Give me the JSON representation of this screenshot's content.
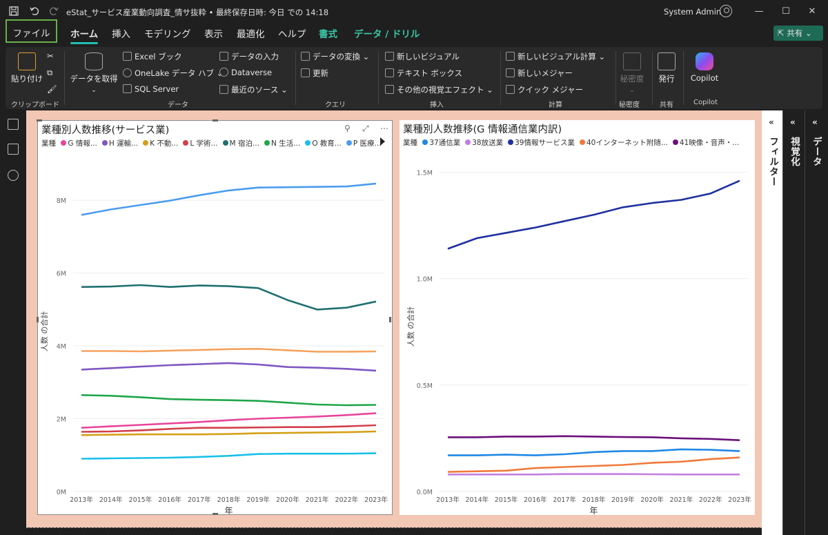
{
  "titlebar": {
    "title": "eStat_サービス産業動向調査_情サ抜粋 • 最終保存日時: 今日 での 14:18",
    "user": "System Admin",
    "icons": [
      "save-icon",
      "undo-icon",
      "redo-icon",
      "user-icon"
    ]
  },
  "menu": {
    "tabs": [
      "ファイル",
      "ホーム",
      "挿入",
      "モデリング",
      "表示",
      "最適化",
      "ヘルプ",
      "書式",
      "データ / ドリル"
    ],
    "active": "ホーム",
    "share": "共有"
  },
  "ribbon": {
    "clipboard": {
      "paste": "貼り付け",
      "label": "クリップボード"
    },
    "data": {
      "get_data": "データを取得",
      "excel": "Excel ブック",
      "onelake": "OneLake データ ハブ",
      "sql": "SQL Server",
      "enter_data": "データの入力",
      "dataverse": "Dataverse",
      "recent": "最近のソース",
      "label": "データ"
    },
    "queries": {
      "transform": "データの変換",
      "refresh": "更新",
      "label": "クエリ"
    },
    "insert": {
      "new_visual": "新しいビジュアル",
      "textbox": "テキスト ボックス",
      "more_visuals": "その他の視覚エフェクト",
      "label": "挿入"
    },
    "calc": {
      "new_visual_calc": "新しいビジュアル計算",
      "new_measure": "新しいメジャー",
      "quick_measure": "クイック メジャー",
      "label": "計算"
    },
    "sensitivity": {
      "button": "秘密度",
      "label": "秘密度"
    },
    "share": {
      "publish": "発行",
      "label": "共有"
    },
    "copilot": {
      "button": "Copilot",
      "label": "Copilot"
    }
  },
  "panes": {
    "filters": "フィルター",
    "visualizations": "視覚化",
    "data": "データ"
  },
  "visual_left": {
    "title": "業種別人数推移(サービス業)",
    "legend_title": "業種",
    "legend": [
      {
        "label": "G 情報...",
        "color": "#e8459a"
      },
      {
        "label": "H 運輸...",
        "color": "#7e57c2"
      },
      {
        "label": "K 不動...",
        "color": "#d4a017"
      },
      {
        "label": "L 学術...",
        "color": "#d23f4b"
      },
      {
        "label": "M 宿泊...",
        "color": "#1f6f6f"
      },
      {
        "label": "N 生活...",
        "color": "#1fa64a"
      },
      {
        "label": "O 教育...",
        "color": "#19c0e8"
      },
      {
        "label": "P 医療...",
        "color": "#4b9cf0"
      }
    ]
  },
  "visual_right": {
    "title": "業種別人数推移(G 情報通信業内訳)",
    "legend_title": "業種",
    "legend": [
      {
        "label": "37通信業",
        "color": "#1e88e5"
      },
      {
        "label": "38放送業",
        "color": "#c27ee0"
      },
      {
        "label": "39情報サービス業",
        "color": "#1f2f9f"
      },
      {
        "label": "40インターネット附随...",
        "color": "#f07a3a"
      },
      {
        "label": "41映像・音声・...",
        "color": "#6a0f7a"
      }
    ]
  },
  "chart_data": [
    {
      "type": "line",
      "title": "業種別人数推移(サービス業)",
      "xlabel": "年",
      "ylabel": "人数 の合計",
      "ylim": [
        0,
        8800000
      ],
      "yticks": [
        0,
        2000000,
        4000000,
        6000000,
        8000000
      ],
      "ytick_labels": [
        "0M",
        "2M",
        "4M",
        "6M",
        "8M"
      ],
      "x": [
        "2013年",
        "2014年",
        "2015年",
        "2016年",
        "2017年",
        "2018年",
        "2019年",
        "2020年",
        "2021年",
        "2022年",
        "2023年"
      ],
      "series": [
        {
          "name": "P 医療...",
          "color": "#4b9cf0",
          "values": [
            7600000,
            7750000,
            7870000,
            7990000,
            8140000,
            8270000,
            8350000,
            8360000,
            8370000,
            8380000,
            8460000
          ]
        },
        {
          "name": "M 宿泊...",
          "color": "#1f6f6f",
          "values": [
            5620000,
            5630000,
            5670000,
            5620000,
            5660000,
            5640000,
            5590000,
            5260000,
            5000000,
            5050000,
            5220000
          ]
        },
        {
          "name": "K 不動...",
          "color": "#f5a25d",
          "values": [
            3860000,
            3860000,
            3850000,
            3870000,
            3890000,
            3910000,
            3920000,
            3880000,
            3840000,
            3840000,
            3850000
          ]
        },
        {
          "name": "H 運輸...",
          "color": "#7e57c2",
          "values": [
            3350000,
            3390000,
            3430000,
            3470000,
            3500000,
            3530000,
            3490000,
            3420000,
            3400000,
            3370000,
            3320000
          ]
        },
        {
          "name": "N 生活...",
          "color": "#1fa64a",
          "values": [
            2650000,
            2630000,
            2590000,
            2540000,
            2520000,
            2510000,
            2490000,
            2440000,
            2390000,
            2370000,
            2380000
          ]
        },
        {
          "name": "G 情報...",
          "color": "#e8459a",
          "values": [
            1750000,
            1790000,
            1830000,
            1870000,
            1910000,
            1960000,
            2000000,
            2030000,
            2060000,
            2100000,
            2150000
          ]
        },
        {
          "name": "L 学術...",
          "color": "#d23f4b",
          "values": [
            1640000,
            1650000,
            1680000,
            1720000,
            1750000,
            1750000,
            1760000,
            1770000,
            1770000,
            1790000,
            1820000
          ]
        },
        {
          "name": "K 不動... (yellow)",
          "color": "#d4a017",
          "values": [
            1550000,
            1560000,
            1570000,
            1570000,
            1570000,
            1580000,
            1600000,
            1610000,
            1620000,
            1630000,
            1650000
          ]
        },
        {
          "name": "O 教育...",
          "color": "#19c0e8",
          "values": [
            900000,
            910000,
            920000,
            930000,
            950000,
            980000,
            1030000,
            1040000,
            1040000,
            1040000,
            1050000
          ]
        }
      ]
    },
    {
      "type": "line",
      "title": "業種別人数推移(G 情報通信業内訳)",
      "xlabel": "年",
      "ylabel": "人数 の合計",
      "ylim": [
        0,
        1550000
      ],
      "yticks": [
        0,
        500000,
        1000000,
        1500000
      ],
      "ytick_labels": [
        "0.0M",
        "0.5M",
        "1.0M",
        "1.5M"
      ],
      "x": [
        "2013年",
        "2014年",
        "2015年",
        "2016年",
        "2017年",
        "2018年",
        "2019年",
        "2020年",
        "2021年",
        "2022年",
        "2023年"
      ],
      "series": [
        {
          "name": "39情報サービス業",
          "color": "#1f2f9f",
          "values": [
            1140000,
            1190000,
            1215000,
            1240000,
            1270000,
            1300000,
            1335000,
            1355000,
            1370000,
            1400000,
            1460000
          ]
        },
        {
          "name": "41映像・音声・...",
          "color": "#6a0f7a",
          "values": [
            255000,
            255000,
            258000,
            258000,
            260000,
            258000,
            256000,
            255000,
            250000,
            247000,
            241000
          ]
        },
        {
          "name": "37通信業",
          "color": "#1e88e5",
          "values": [
            170000,
            170000,
            173000,
            170000,
            175000,
            185000,
            190000,
            190000,
            198000,
            196000,
            190000
          ]
        },
        {
          "name": "40インターネット附随...",
          "color": "#f07a3a",
          "values": [
            92000,
            95000,
            98000,
            110000,
            115000,
            120000,
            125000,
            135000,
            140000,
            152000,
            160000
          ]
        },
        {
          "name": "38放送業",
          "color": "#c27ee0",
          "values": [
            80000,
            80000,
            80000,
            80000,
            82000,
            82000,
            82000,
            81000,
            80000,
            80000,
            80000
          ]
        }
      ]
    }
  ]
}
